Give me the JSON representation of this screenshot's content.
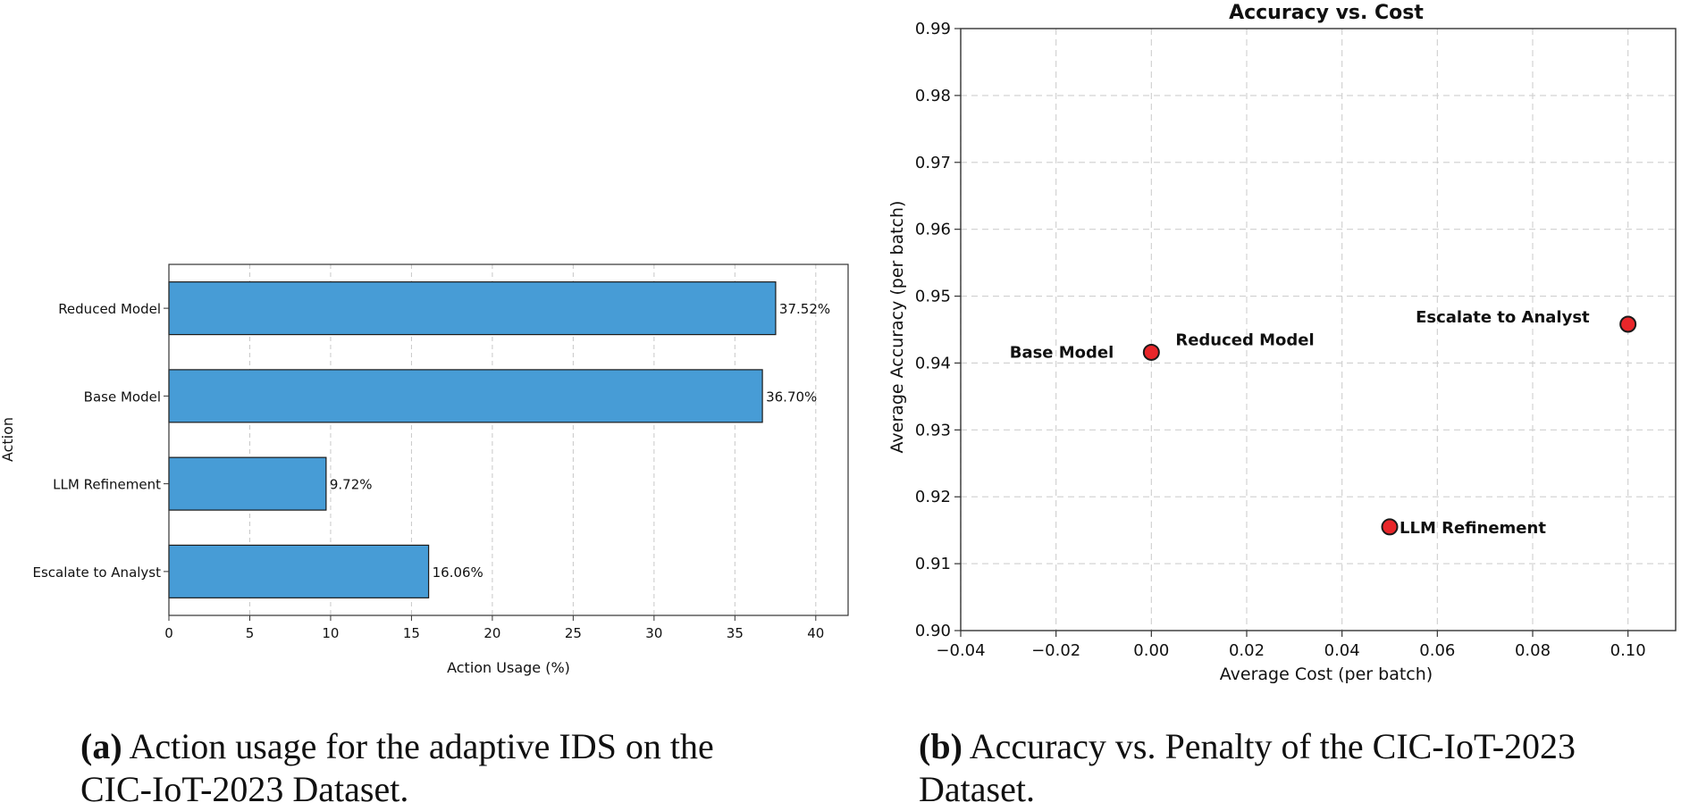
{
  "chart_data": [
    {
      "type": "bar",
      "orientation": "horizontal",
      "title": "",
      "xlabel": "Action Usage (%)",
      "ylabel": "Action",
      "xlim": [
        0,
        42
      ],
      "xticks": [
        0,
        5,
        10,
        15,
        20,
        25,
        30,
        35,
        40
      ],
      "grid": "x dashed",
      "categories": [
        "Reduced Model",
        "Base Model",
        "LLM Refinement",
        "Escalate to Analyst"
      ],
      "values": [
        37.52,
        36.7,
        9.72,
        16.06
      ],
      "value_labels": [
        "37.52%",
        "36.70%",
        "9.72%",
        "16.06%"
      ],
      "bar_color": "#479CD6"
    },
    {
      "type": "scatter",
      "title": "Accuracy vs. Cost",
      "xlabel": "Average Cost (per batch)",
      "ylabel": "Average Accuracy (per batch)",
      "xlim": [
        -0.04,
        0.11
      ],
      "ylim": [
        0.9,
        0.99
      ],
      "xticks": [
        -0.04,
        -0.02,
        0.0,
        0.02,
        0.04,
        0.06,
        0.08,
        0.1
      ],
      "xtick_labels": [
        "−0.04",
        "−0.02",
        "0.00",
        "0.02",
        "0.04",
        "0.06",
        "0.08",
        "0.10"
      ],
      "yticks": [
        0.9,
        0.91,
        0.92,
        0.93,
        0.94,
        0.95,
        0.96,
        0.97,
        0.98,
        0.99
      ],
      "ytick_labels": [
        "0.90",
        "0.91",
        "0.92",
        "0.93",
        "0.94",
        "0.95",
        "0.96",
        "0.97",
        "0.98",
        "0.99"
      ],
      "grid": "both dashed",
      "marker_color": "#E8262A",
      "points": [
        {
          "label": "Base Model",
          "x": 0.0,
          "y": 0.9416,
          "label_position": "left"
        },
        {
          "label": "Reduced Model",
          "x": 0.0,
          "y": 0.9416,
          "label_position": "upper-right"
        },
        {
          "label": "LLM Refinement",
          "x": 0.05,
          "y": 0.9155,
          "label_position": "right"
        },
        {
          "label": "Escalate to Analyst",
          "x": 0.1,
          "y": 0.9458,
          "label_position": "left"
        }
      ]
    }
  ],
  "captions": {
    "a_tag": "(a)",
    "a_line1": "Action usage for the adaptive IDS on the",
    "a_line2": "CIC-IoT-2023 Dataset.",
    "b_tag": "(b)",
    "b_line1": "Accuracy vs. Penalty of the CIC-IoT-2023",
    "b_line2": "Dataset."
  }
}
